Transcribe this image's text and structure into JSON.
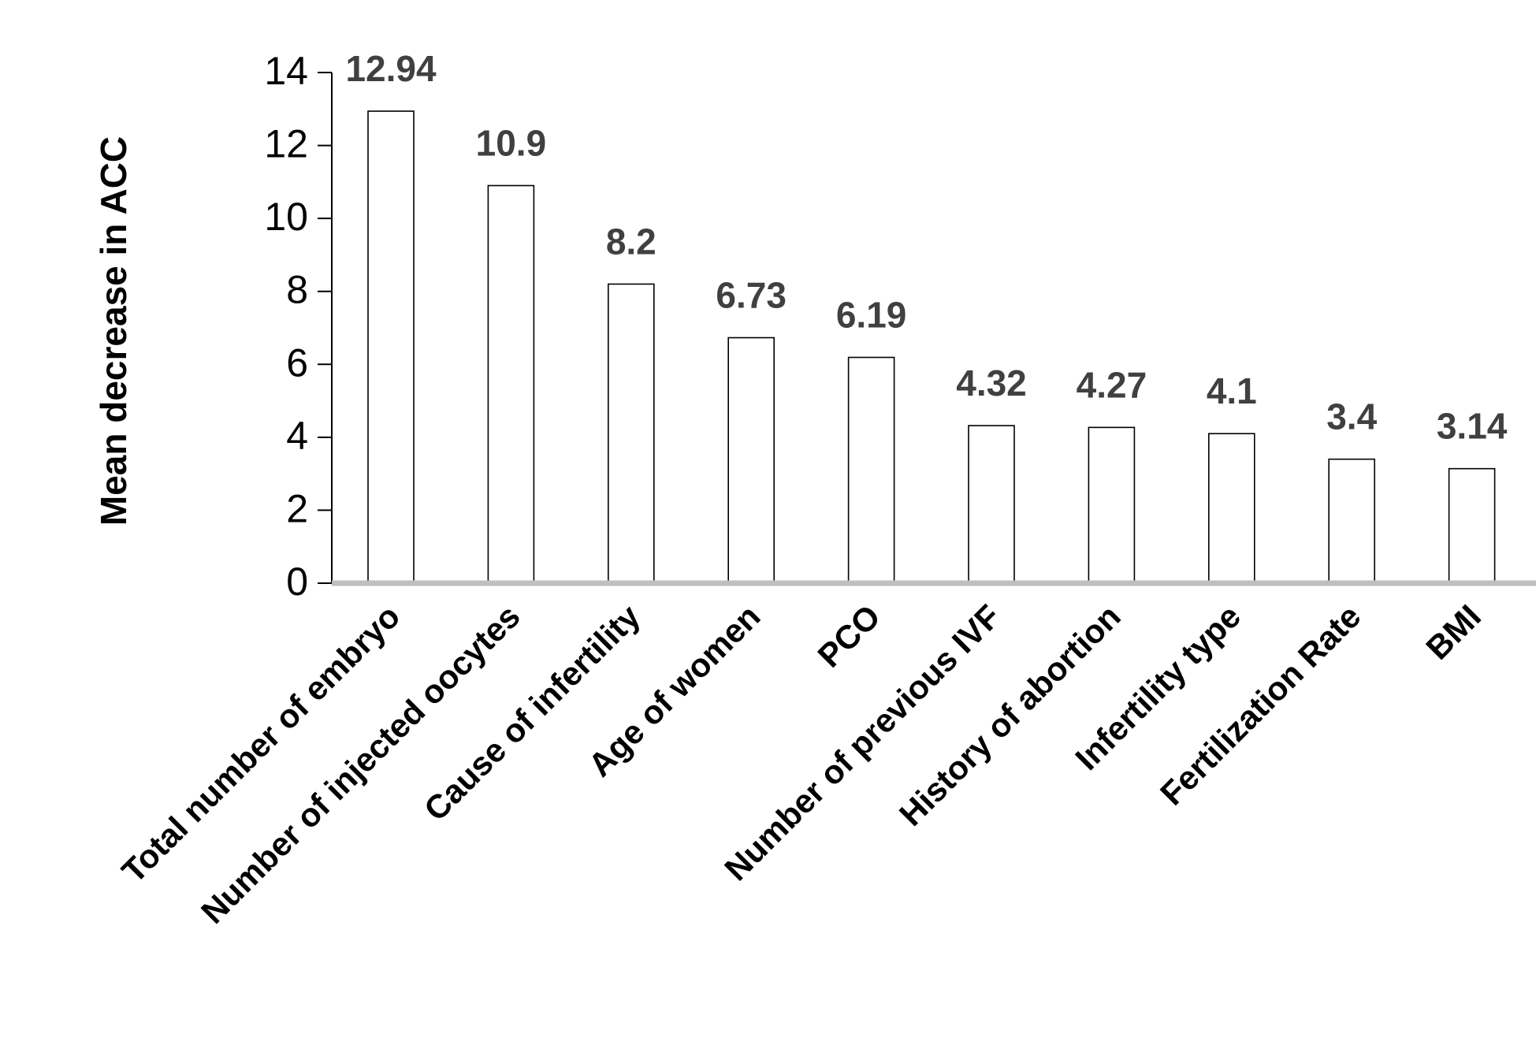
{
  "chart_data": {
    "type": "bar",
    "title": "",
    "xlabel": "",
    "ylabel": "Mean decrease in ACC",
    "ylim": [
      0,
      14
    ],
    "yticks": [
      0,
      2,
      4,
      6,
      8,
      10,
      12,
      14
    ],
    "grid": false,
    "legend": "none",
    "categories": [
      "Total number of embryo",
      "Number of injected oocytes",
      "Cause of infertility",
      "Age of women",
      "PCO",
      "Number of previous IVF",
      "History of abortion",
      "Infertility type",
      "Fertilization Rate",
      "BMI"
    ],
    "values": [
      12.94,
      10.9,
      8.2,
      6.73,
      6.19,
      4.32,
      4.27,
      4.1,
      3.4,
      3.14
    ],
    "data_labels": [
      "12.94",
      "10.9",
      "8.2",
      "6.73",
      "6.19",
      "4.32",
      "4.27",
      "4.1",
      "3.4",
      "3.14"
    ],
    "colors": {
      "bar_fill": "#ffffff",
      "bar_stroke": "#000000",
      "baseline": "#bfbfbf",
      "axis": "#000000",
      "data_label": "#404040",
      "text": "#000000"
    }
  }
}
